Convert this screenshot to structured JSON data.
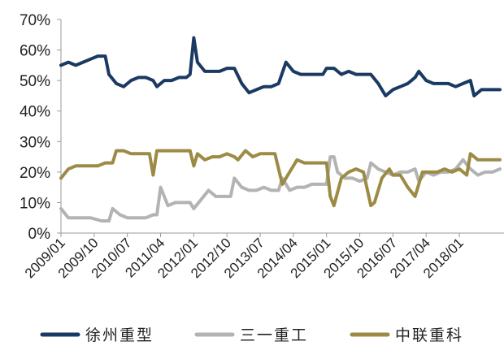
{
  "chart_data": {
    "type": "line",
    "title": "",
    "xlabel": "",
    "ylabel": "",
    "ylim": [
      0,
      70
    ],
    "y_ticks": [
      "0%",
      "10%",
      "20%",
      "30%",
      "40%",
      "50%",
      "60%",
      "70%"
    ],
    "y_tick_values": [
      0,
      10,
      20,
      30,
      40,
      50,
      60,
      70
    ],
    "x_ticks": [
      "2009/01",
      "2009/10",
      "2010/07",
      "2011/04",
      "2012/01",
      "2012/10",
      "2013/07",
      "2014/04",
      "2015/01",
      "2015/10",
      "2016/07",
      "2017/04",
      "2018/01"
    ],
    "x_range": [
      "2009/01",
      "2018/12"
    ],
    "grid": false,
    "legend_position": "bottom",
    "series": [
      {
        "name": "徐州重型",
        "color": "#1b3a63",
        "points": [
          [
            "2009/01",
            55
          ],
          [
            "2009/03",
            56
          ],
          [
            "2009/05",
            55
          ],
          [
            "2009/07",
            56
          ],
          [
            "2009/09",
            57
          ],
          [
            "2009/11",
            58
          ],
          [
            "2010/01",
            58
          ],
          [
            "2010/02",
            52
          ],
          [
            "2010/04",
            49
          ],
          [
            "2010/06",
            48
          ],
          [
            "2010/08",
            50
          ],
          [
            "2010/10",
            51
          ],
          [
            "2010/12",
            51
          ],
          [
            "2011/02",
            50
          ],
          [
            "2011/03",
            48
          ],
          [
            "2011/05",
            50
          ],
          [
            "2011/07",
            50
          ],
          [
            "2011/09",
            51
          ],
          [
            "2011/11",
            51
          ],
          [
            "2011/12",
            52
          ],
          [
            "2012/01",
            64
          ],
          [
            "2012/02",
            56
          ],
          [
            "2012/04",
            53
          ],
          [
            "2012/06",
            53
          ],
          [
            "2012/08",
            53
          ],
          [
            "2012/10",
            54
          ],
          [
            "2012/12",
            54
          ],
          [
            "2013/02",
            49
          ],
          [
            "2013/04",
            46
          ],
          [
            "2013/06",
            47
          ],
          [
            "2013/08",
            48
          ],
          [
            "2013/10",
            48
          ],
          [
            "2013/12",
            49
          ],
          [
            "2014/02",
            56
          ],
          [
            "2014/04",
            53
          ],
          [
            "2014/06",
            52
          ],
          [
            "2014/09",
            52
          ],
          [
            "2014/12",
            52
          ],
          [
            "2015/01",
            54
          ],
          [
            "2015/03",
            54
          ],
          [
            "2015/05",
            52
          ],
          [
            "2015/07",
            53
          ],
          [
            "2015/09",
            52
          ],
          [
            "2015/11",
            52
          ],
          [
            "2016/01",
            52
          ],
          [
            "2016/03",
            49
          ],
          [
            "2016/05",
            45
          ],
          [
            "2016/07",
            47
          ],
          [
            "2016/09",
            48
          ],
          [
            "2016/11",
            49
          ],
          [
            "2017/01",
            51
          ],
          [
            "2017/02",
            53
          ],
          [
            "2017/04",
            50
          ],
          [
            "2017/06",
            49
          ],
          [
            "2017/08",
            49
          ],
          [
            "2017/10",
            49
          ],
          [
            "2017/12",
            48
          ],
          [
            "2018/02",
            49
          ],
          [
            "2018/04",
            50
          ],
          [
            "2018/05",
            45
          ],
          [
            "2018/07",
            47
          ],
          [
            "2018/09",
            47
          ],
          [
            "2018/12",
            47
          ]
        ]
      },
      {
        "name": "三一重工",
        "color": "#b3b3b3",
        "points": [
          [
            "2009/01",
            8
          ],
          [
            "2009/03",
            5
          ],
          [
            "2009/06",
            5
          ],
          [
            "2009/09",
            5
          ],
          [
            "2009/12",
            4
          ],
          [
            "2010/02",
            4
          ],
          [
            "2010/03",
            8
          ],
          [
            "2010/05",
            6
          ],
          [
            "2010/07",
            5
          ],
          [
            "2010/09",
            5
          ],
          [
            "2010/12",
            5
          ],
          [
            "2011/02",
            6
          ],
          [
            "2011/03",
            6
          ],
          [
            "2011/04",
            15
          ],
          [
            "2011/06",
            9
          ],
          [
            "2011/08",
            10
          ],
          [
            "2011/10",
            10
          ],
          [
            "2011/12",
            10
          ],
          [
            "2012/01",
            8
          ],
          [
            "2012/03",
            11
          ],
          [
            "2012/05",
            14
          ],
          [
            "2012/07",
            12
          ],
          [
            "2012/09",
            12
          ],
          [
            "2012/11",
            12
          ],
          [
            "2012/12",
            18
          ],
          [
            "2013/02",
            15
          ],
          [
            "2013/04",
            14
          ],
          [
            "2013/06",
            14
          ],
          [
            "2013/08",
            15
          ],
          [
            "2013/10",
            14
          ],
          [
            "2013/12",
            14
          ],
          [
            "2014/01",
            18
          ],
          [
            "2014/03",
            14
          ],
          [
            "2014/05",
            15
          ],
          [
            "2014/07",
            15
          ],
          [
            "2014/09",
            16
          ],
          [
            "2014/11",
            16
          ],
          [
            "2015/01",
            16
          ],
          [
            "2015/02",
            25
          ],
          [
            "2015/03",
            25
          ],
          [
            "2015/04",
            20
          ],
          [
            "2015/06",
            18
          ],
          [
            "2015/08",
            18
          ],
          [
            "2015/10",
            17
          ],
          [
            "2015/12",
            18
          ],
          [
            "2016/01",
            23
          ],
          [
            "2016/03",
            21
          ],
          [
            "2016/05",
            20
          ],
          [
            "2016/07",
            19
          ],
          [
            "2016/09",
            20
          ],
          [
            "2016/11",
            20
          ],
          [
            "2017/01",
            21
          ],
          [
            "2017/02",
            17
          ],
          [
            "2017/04",
            20
          ],
          [
            "2017/06",
            19
          ],
          [
            "2017/08",
            20
          ],
          [
            "2017/10",
            20
          ],
          [
            "2017/12",
            21
          ],
          [
            "2018/02",
            24
          ],
          [
            "2018/04",
            21
          ],
          [
            "2018/06",
            19
          ],
          [
            "2018/08",
            20
          ],
          [
            "2018/10",
            20
          ],
          [
            "2018/12",
            21
          ]
        ]
      },
      {
        "name": "中联重科",
        "color": "#9c8b45",
        "points": [
          [
            "2009/01",
            18
          ],
          [
            "2009/03",
            21
          ],
          [
            "2009/05",
            22
          ],
          [
            "2009/07",
            22
          ],
          [
            "2009/09",
            22
          ],
          [
            "2009/11",
            22
          ],
          [
            "2010/01",
            23
          ],
          [
            "2010/03",
            23
          ],
          [
            "2010/04",
            27
          ],
          [
            "2010/06",
            27
          ],
          [
            "2010/08",
            26
          ],
          [
            "2010/10",
            26
          ],
          [
            "2010/12",
            26
          ],
          [
            "2011/01",
            26
          ],
          [
            "2011/02",
            19
          ],
          [
            "2011/03",
            27
          ],
          [
            "2011/05",
            27
          ],
          [
            "2011/07",
            27
          ],
          [
            "2011/09",
            27
          ],
          [
            "2011/11",
            27
          ],
          [
            "2011/12",
            27
          ],
          [
            "2012/01",
            22
          ],
          [
            "2012/02",
            26
          ],
          [
            "2012/04",
            24
          ],
          [
            "2012/06",
            25
          ],
          [
            "2012/08",
            25
          ],
          [
            "2012/10",
            26
          ],
          [
            "2012/12",
            25
          ],
          [
            "2013/01",
            24
          ],
          [
            "2013/03",
            27
          ],
          [
            "2013/05",
            25
          ],
          [
            "2013/07",
            26
          ],
          [
            "2013/09",
            26
          ],
          [
            "2013/11",
            26
          ],
          [
            "2014/01",
            16
          ],
          [
            "2014/03",
            20
          ],
          [
            "2014/05",
            24
          ],
          [
            "2014/07",
            23
          ],
          [
            "2014/09",
            23
          ],
          [
            "2014/11",
            23
          ],
          [
            "2015/01",
            23
          ],
          [
            "2015/02",
            12
          ],
          [
            "2015/03",
            9
          ],
          [
            "2015/05",
            18
          ],
          [
            "2015/07",
            20
          ],
          [
            "2015/09",
            21
          ],
          [
            "2015/11",
            20
          ],
          [
            "2016/01",
            9
          ],
          [
            "2016/02",
            10
          ],
          [
            "2016/04",
            18
          ],
          [
            "2016/06",
            21
          ],
          [
            "2016/07",
            19
          ],
          [
            "2016/09",
            19
          ],
          [
            "2016/11",
            15
          ],
          [
            "2017/01",
            12
          ],
          [
            "2017/03",
            20
          ],
          [
            "2017/05",
            20
          ],
          [
            "2017/07",
            20
          ],
          [
            "2017/09",
            21
          ],
          [
            "2017/11",
            20
          ],
          [
            "2018/01",
            21
          ],
          [
            "2018/03",
            19
          ],
          [
            "2018/04",
            26
          ],
          [
            "2018/06",
            24
          ],
          [
            "2018/08",
            24
          ],
          [
            "2018/10",
            24
          ],
          [
            "2018/12",
            24
          ]
        ]
      }
    ]
  }
}
